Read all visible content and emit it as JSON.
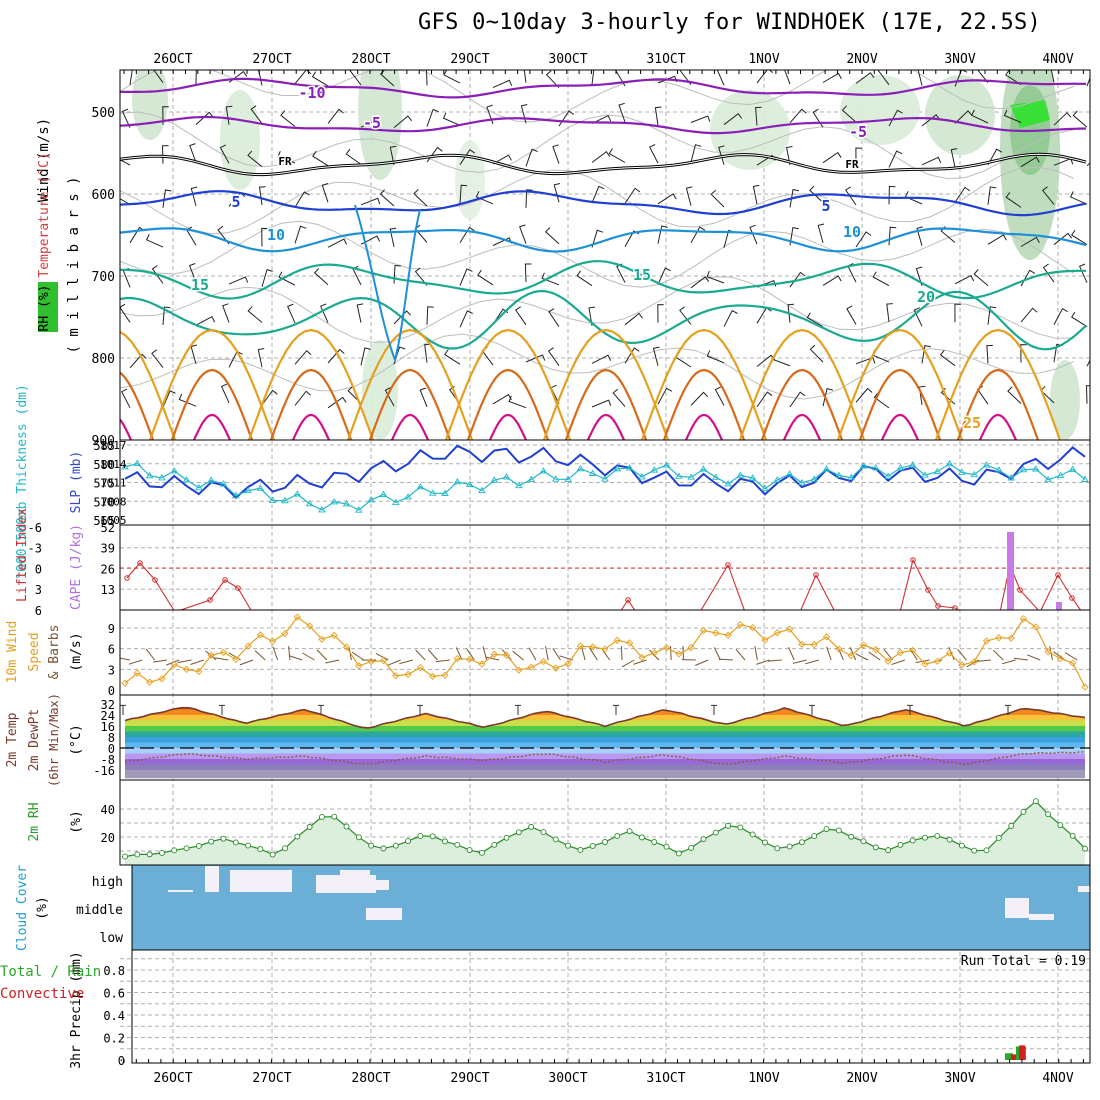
{
  "title": "GFS 0~10day 3-hourly for WINDHOEK (17E, 22.5S)",
  "date_labels": [
    "26OCT",
    "27OCT",
    "28OCT",
    "29OCT",
    "30OCT",
    "31OCT",
    "1NOV",
    "2NOV",
    "3NOV",
    "4NOV"
  ],
  "colors": {
    "purple": "#8a1fb8",
    "dark_blue": "#1f3fd1",
    "mid_blue": "#1e90d8",
    "teal": "#1aaa8f",
    "orange": "#e6a020",
    "dark_orange": "#d76a1a",
    "magenta": "#d0108a",
    "black": "#000000",
    "grid": "#b0b0b0",
    "rh_green": "#2fbf2f",
    "cape": "#c77ae8",
    "cloud_blue": "#6baed6"
  },
  "upper_panel": {
    "ylabel_wind": "Wind (m/s)",
    "ylabel_temp": "Temperature (°C)",
    "ylabel_rh": "RH (%)",
    "ylabel_units": "( m i l l i b a r s )",
    "yticks": [
      "500",
      "600",
      "700",
      "800",
      "900"
    ],
    "contour_labels": [
      {
        "text": "-10",
        "color": "purple"
      },
      {
        "text": "-5",
        "color": "purple"
      },
      {
        "text": "-5",
        "color": "purple"
      },
      {
        "text": "FR",
        "color": "black"
      },
      {
        "text": "FR",
        "color": "black"
      },
      {
        "text": "5",
        "color": "dark_blue"
      },
      {
        "text": "5",
        "color": "dark_blue"
      },
      {
        "text": "10",
        "color": "mid_blue"
      },
      {
        "text": "10",
        "color": "mid_blue"
      },
      {
        "text": "15",
        "color": "teal"
      },
      {
        "text": "15",
        "color": "teal"
      },
      {
        "text": "20",
        "color": "teal"
      },
      {
        "text": "25",
        "color": "orange"
      }
    ]
  },
  "thickness_panel": {
    "ylabel_left": "1000-500mb Thickness (dm)",
    "ylabel_right": "SLP (mb)",
    "yticks_left": [
      "585",
      "580",
      "575",
      "570",
      "565"
    ],
    "yticks_right": [
      "1017",
      "1014",
      "1011",
      "1008",
      "1005"
    ]
  },
  "cape_panel": {
    "ylabel_left": "Lifted Index",
    "ylabel_right": "CAPE (J/kg)",
    "yticks_left": [
      "-6",
      "-3",
      "0",
      "3",
      "6"
    ],
    "yticks_right": [
      "52",
      "39",
      "26",
      "13"
    ]
  },
  "wind_panel": {
    "ylabel_1": "10m Wind",
    "ylabel_2": "Speed",
    "ylabel_3": "& Barbs",
    "ylabel_units": "(m/s)",
    "yticks": [
      "9",
      "6",
      "3",
      "0"
    ]
  },
  "temp_panel": {
    "ylabel_1": "2m Temp",
    "ylabel_2": "2m DewPt",
    "ylabel_3": "(6hr Min/Max)",
    "ylabel_units": "(°C)",
    "yticks": [
      "32",
      "24",
      "16",
      "8",
      "0",
      "-8",
      "-16"
    ]
  },
  "rh_panel": {
    "ylabel": "2m RH",
    "ylabel_units": "(%)",
    "yticks": [
      "40",
      "20"
    ]
  },
  "cloud_panel": {
    "ylabel": "Cloud Cover",
    "ylabel_units": "(%)",
    "levels": [
      "high",
      "middle",
      "low"
    ]
  },
  "precip_panel": {
    "ylabel_1": "3hr Precip (mm)",
    "ylabel_2": "Total / Rain",
    "ylabel_3": "Convective",
    "yticks": [
      "0.8",
      "0.6",
      "0.4",
      "0.2",
      "0"
    ],
    "run_total": "Run Total = 0.19"
  },
  "chart_data": [
    {
      "type": "line",
      "panel": "thickness",
      "categories": [
        "26OCT",
        "27OCT",
        "28OCT",
        "29OCT",
        "30OCT",
        "31OCT",
        "1NOV",
        "2NOV",
        "3NOV",
        "4NOV"
      ],
      "series": [
        {
          "name": "Thickness",
          "color": "#1f3fd1",
          "values": [
            576,
            573,
            576,
            583,
            582,
            576,
            574,
            578,
            576,
            583
          ],
          "axis": "dm"
        },
        {
          "name": "SLP",
          "color": "#20b8c8",
          "values": [
            1013.5,
            1010,
            1007,
            1010,
            1012,
            1013,
            1011,
            1013,
            1013,
            1012
          ],
          "axis": "mb"
        }
      ]
    },
    {
      "type": "line",
      "panel": "cape",
      "series": [
        {
          "name": "Lifted Index",
          "color": "#d03030",
          "values": [
            1,
            4,
            6,
            6,
            6,
            2,
            -1,
            0,
            -1,
            6,
            1
          ]
        },
        {
          "name": "CAPE",
          "color": "#c77ae8",
          "values": [
            0,
            0,
            0,
            0,
            0,
            0,
            0,
            0,
            0,
            0,
            60
          ]
        }
      ]
    },
    {
      "type": "line",
      "panel": "wind10m",
      "series": [
        {
          "name": "Speed",
          "color": "#e6a020",
          "values": [
            1,
            3,
            6,
            10,
            4,
            2,
            5,
            3,
            7,
            5,
            9,
            8,
            6,
            5,
            4,
            10,
            1
          ]
        }
      ]
    },
    {
      "type": "area",
      "panel": "temp2m",
      "series": [
        {
          "name": "Temp",
          "values": [
            20,
            30,
            18,
            28,
            14,
            25,
            15,
            27,
            16,
            28,
            17,
            29,
            16,
            28,
            16,
            29,
            22
          ]
        },
        {
          "name": "DewPt",
          "values": [
            -10,
            -4,
            -8,
            -6,
            -12,
            -6,
            -9,
            -4,
            -10,
            -5,
            -12,
            -6,
            -11,
            -5,
            -12,
            -4,
            -3
          ]
        }
      ]
    },
    {
      "type": "area",
      "panel": "rh2m",
      "series": [
        {
          "name": "RH",
          "values": [
            6,
            10,
            19,
            7,
            38,
            10,
            22,
            8,
            28,
            10,
            24,
            8,
            30,
            10,
            27,
            10,
            22,
            8,
            46,
            12
          ]
        }
      ]
    },
    {
      "type": "bar",
      "panel": "precip",
      "series": [
        {
          "name": "Total / Rain",
          "values": [
            0,
            0,
            0,
            0,
            0,
            0,
            0,
            0,
            0,
            0.06,
            0.12
          ]
        },
        {
          "name": "Convective",
          "values": [
            0,
            0,
            0,
            0,
            0,
            0,
            0,
            0,
            0,
            0.05,
            0.13
          ]
        }
      ]
    }
  ]
}
